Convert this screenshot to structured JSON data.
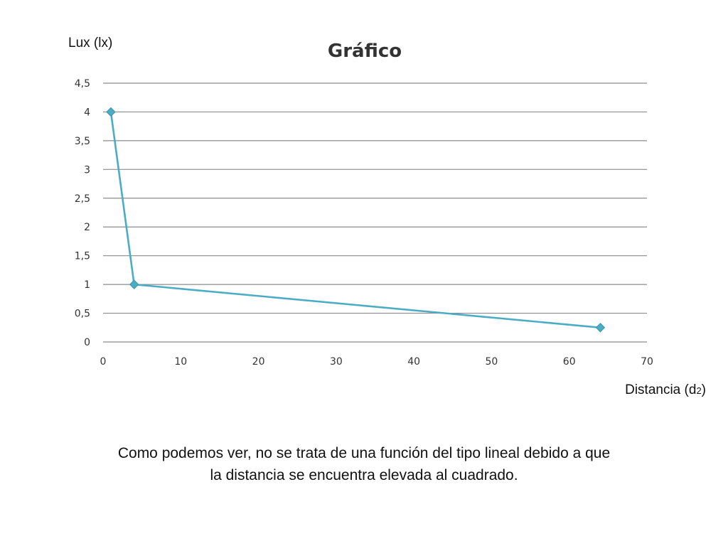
{
  "chart_data": {
    "type": "line",
    "title": "Gráfico",
    "ylabel": "Lux (lx)",
    "xlabel_main": "Distancia (d",
    "xlabel_sub": "2",
    "xlabel_tail": ")",
    "xlim": [
      0,
      70
    ],
    "ylim": [
      0,
      4.5
    ],
    "x_ticks": [
      0,
      10,
      20,
      30,
      40,
      50,
      60,
      70
    ],
    "y_ticks": [
      0,
      0.5,
      1,
      1.5,
      2,
      2.5,
      3,
      3.5,
      4,
      4.5
    ],
    "y_tick_labels": [
      "0",
      "0,5",
      "1",
      "1,5",
      "2",
      "2,5",
      "3",
      "3,5",
      "4",
      "4,5"
    ],
    "grid": true,
    "marker": "diamond",
    "series": [
      {
        "x": [
          1,
          4,
          64
        ],
        "values": [
          4,
          1,
          0.25
        ],
        "color": "#4bacc6"
      }
    ]
  },
  "caption": {
    "line1": "Como podemos ver, no se trata de una función del tipo lineal debido a que",
    "line2": "la distancia se encuentra elevada al cuadrado."
  }
}
